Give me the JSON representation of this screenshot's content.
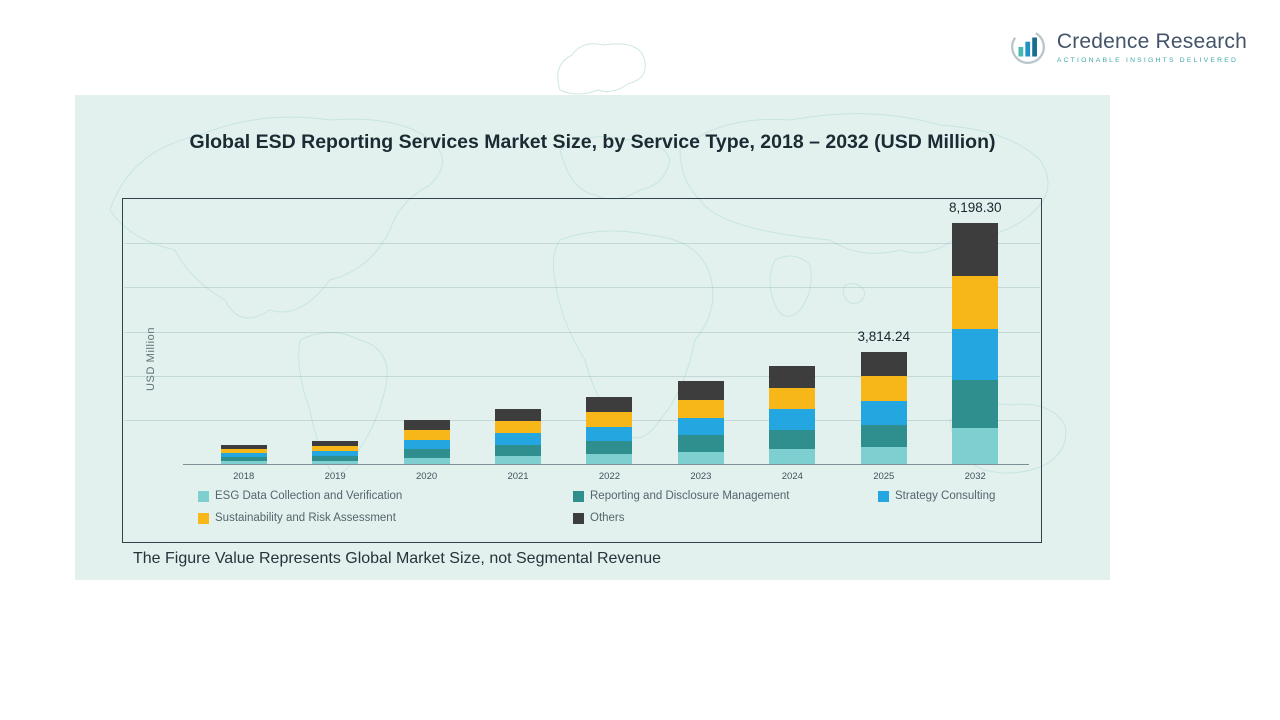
{
  "logo": {
    "brand": "Credence Research",
    "tagline": "Actionable Insights Delivered",
    "brand_color": "#44546b",
    "accent_color": "#3fa9ab"
  },
  "panel": {
    "background_color": "#e2f1ee"
  },
  "chart_data": {
    "type": "bar",
    "stacked": true,
    "title": "Global ESD Reporting Services Market Size, by Service Type, 2018 – 2032 (USD Million)",
    "ylabel": "USD Million",
    "xlabel": "",
    "footnote": "The Figure Value Represents Global Market Size, not Segmental Revenue",
    "categories": [
      "2018",
      "2019",
      "2020",
      "2021",
      "2022",
      "2023",
      "2024",
      "2025",
      "2032"
    ],
    "series": [
      {
        "name": "ESG Data Collection and Verification",
        "color": "#7ed0d0",
        "values": [
          98,
          119,
          222,
          282,
          341,
          421,
          498,
          572.14,
          1229.75
        ]
      },
      {
        "name": "Reporting and Disclosure Management",
        "color": "#2f8f8f",
        "values": [
          130,
          158,
          296,
          376,
          454,
          562,
          664,
          762.85,
          1639.66
        ]
      },
      {
        "name": "Strategy Consulting",
        "color": "#24a7e0",
        "values": [
          137,
          166,
          311,
          395,
          477,
          590,
          697,
          800.99,
          1721.64
        ]
      },
      {
        "name": "Sustainability and Risk Assessment",
        "color": "#f7b718",
        "values": [
          143,
          174,
          326,
          414,
          499,
          618,
          730,
          839.13,
          1803.63
        ]
      },
      {
        "name": "Others",
        "color": "#3d3d3d",
        "values": [
          142,
          173,
          325,
          413,
          499,
          619,
          731,
          839.13,
          1803.62
        ]
      }
    ],
    "annotations": [
      {
        "category": "2025",
        "text": "3,814.24",
        "value": 3814.24
      },
      {
        "category": "2032",
        "text": "8,198.30",
        "value": 8198.3
      }
    ],
    "ylim": [
      0,
      9000
    ],
    "grid": "horizontal",
    "legend_position": "bottom-inside"
  }
}
